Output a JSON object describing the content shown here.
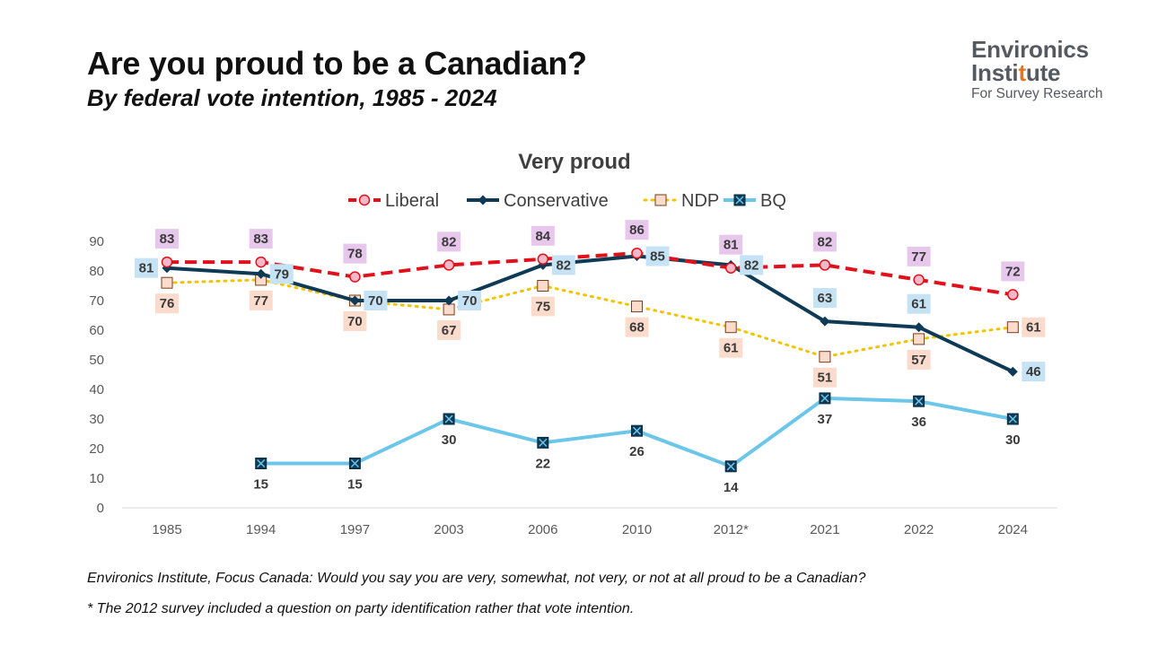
{
  "header": {
    "title": "Are you proud to be a Canadian?",
    "subtitle": "By federal vote intention, 1985 - 2024"
  },
  "logo": {
    "line1": "Environics",
    "line2_start": "Insti",
    "line2_accent": "t",
    "line2_end": "ute",
    "line3": "For Survey Research"
  },
  "footnotes": {
    "source": "Environics Institute, Focus Canada: Would you say you are very, somewhat, not very, or not at all proud to be a Canadian?",
    "note": "* The 2012 survey included a question on party identification rather that vote intention."
  },
  "chart_data": {
    "type": "line",
    "title": "Very proud",
    "categories": [
      "1985",
      "1994",
      "1997",
      "2003",
      "2006",
      "2010",
      "2012*",
      "2021",
      "2022",
      "2024"
    ],
    "ylim": [
      0,
      90
    ],
    "yticks": [
      0,
      10,
      20,
      30,
      40,
      50,
      60,
      70,
      80,
      90
    ],
    "grid": false,
    "legend": "top",
    "series": [
      {
        "name": "Liberal",
        "values": [
          83,
          83,
          78,
          82,
          84,
          86,
          81,
          82,
          77,
          72
        ],
        "color": "#e0111b",
        "line_style": "dashed",
        "marker": "circle",
        "marker_fill": "#f4b8c8",
        "label_bg": "#e8c7ec",
        "label_pos": "above"
      },
      {
        "name": "Conservative",
        "values": [
          81,
          79,
          70,
          70,
          82,
          85,
          82,
          63,
          61,
          46
        ],
        "color": "#0e3a55",
        "line_style": "solid",
        "marker": "diamond",
        "marker_fill": "#0e3a55",
        "label_bg": "#c5e3f5",
        "label_pos": [
          "left",
          "right",
          "right",
          "right",
          "right",
          "right",
          "right",
          "above",
          "above",
          "right"
        ]
      },
      {
        "name": "NDP",
        "values": [
          76,
          77,
          70,
          67,
          75,
          68,
          61,
          51,
          57,
          61
        ],
        "color": "#f2c300",
        "line_style": "dotted",
        "marker": "square",
        "marker_fill": "#fbdccc",
        "label_bg": "#fbdccc",
        "label_pos": [
          "below",
          "below",
          "below",
          "below",
          "below",
          "below",
          "below",
          "below",
          "below",
          "right"
        ]
      },
      {
        "name": "BQ",
        "values": [
          null,
          15,
          15,
          30,
          22,
          26,
          14,
          37,
          36,
          30
        ],
        "color": "#6cc6ea",
        "line_style": "solid",
        "marker": "xbox",
        "marker_fill": "#0e3a55",
        "label_bg": null,
        "label_pos": "below"
      }
    ]
  }
}
